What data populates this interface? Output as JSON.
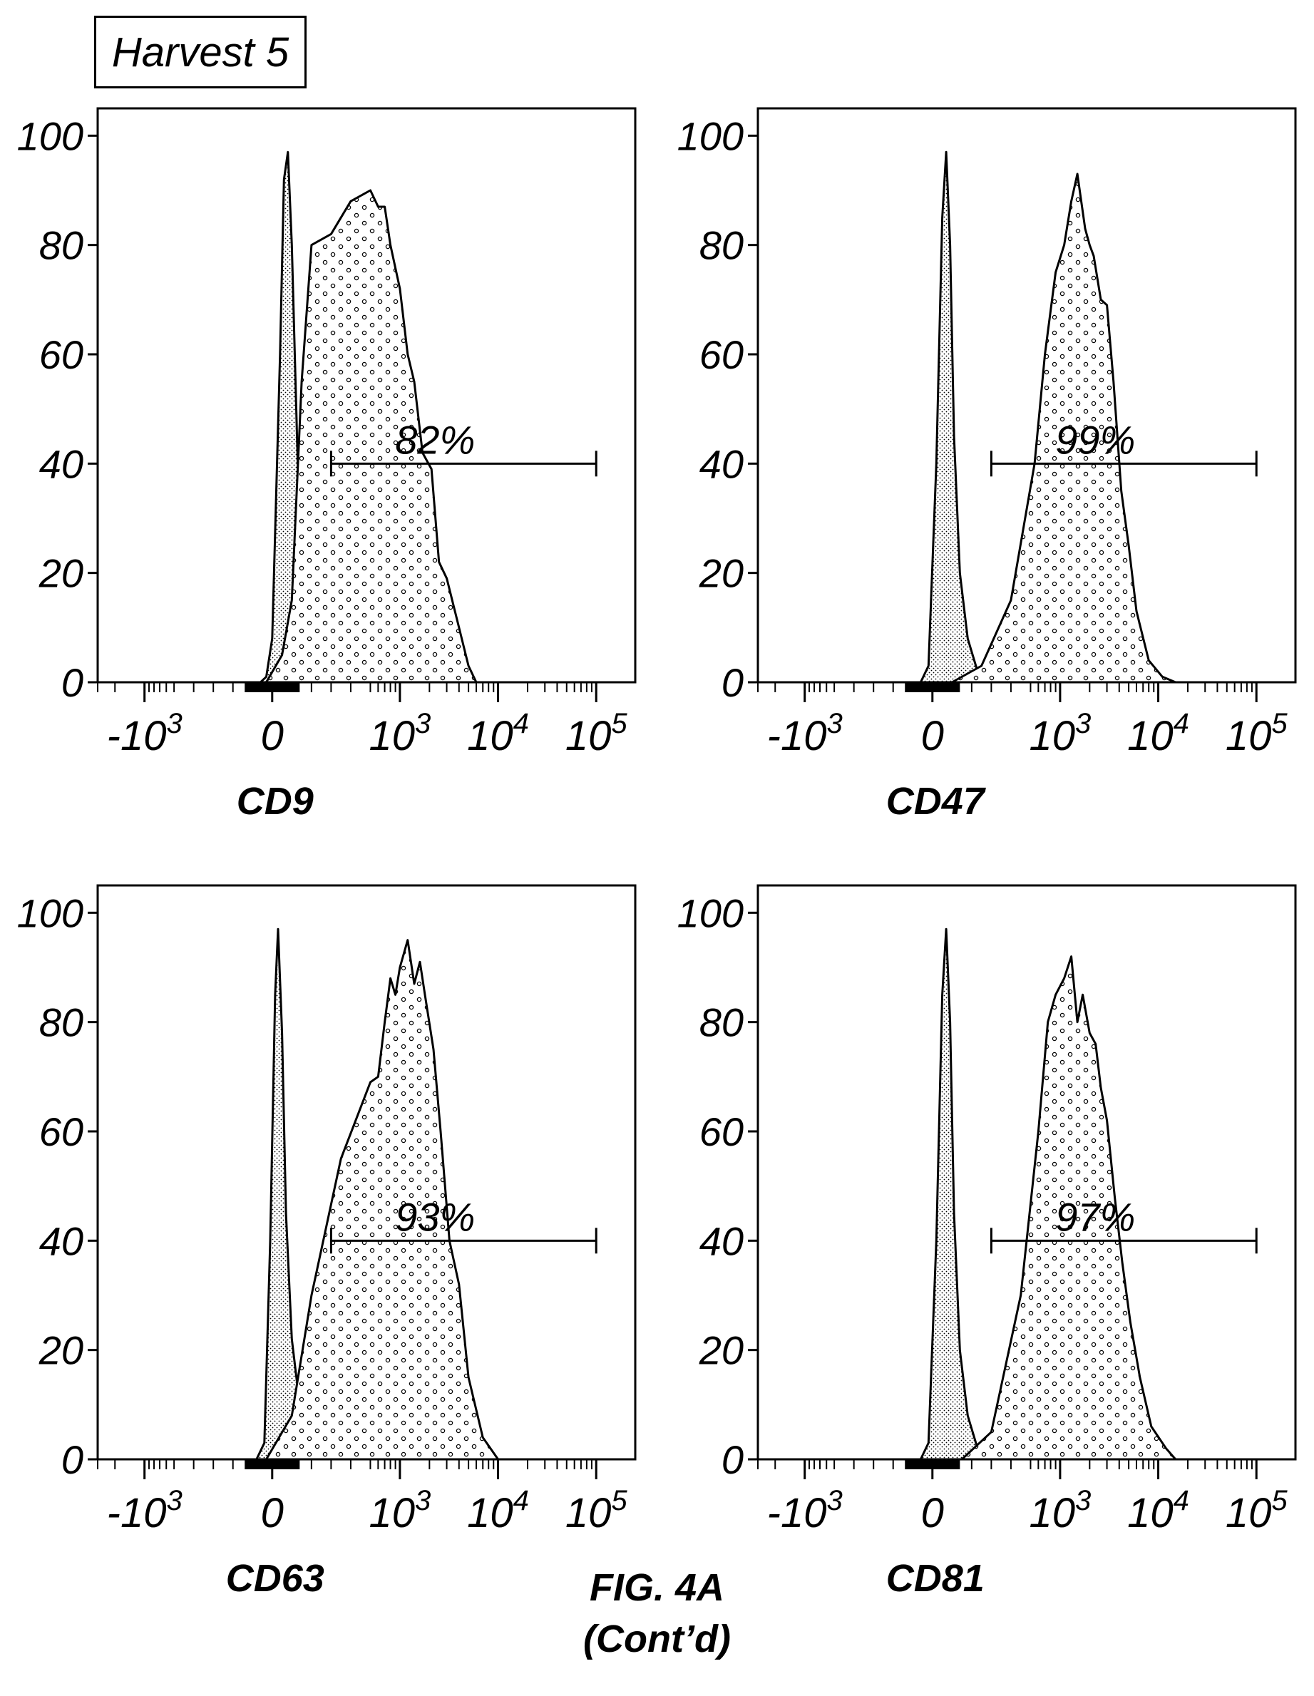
{
  "header": {
    "label": "Harvest 5"
  },
  "figure": {
    "caption": "FIG. 4A",
    "caption_cont": "(Cont’d)"
  },
  "chart_data": [
    {
      "type": "area",
      "xlabel": "CD9",
      "xscale": "biexponential",
      "yticks": [
        0,
        20,
        40,
        60,
        80,
        100
      ],
      "xticks": [
        "-10^3",
        "0",
        "10^3",
        "10^4",
        "10^5"
      ],
      "ylim": [
        0,
        105
      ],
      "gate": {
        "label": "82%",
        "x_range": [
          300,
          100000
        ],
        "y": 40
      },
      "series": [
        {
          "role": "control",
          "fill": "dense-dots",
          "x": [
            -60,
            -30,
            0,
            40,
            60,
            80,
            100,
            130,
            160,
            200,
            250,
            300,
            400
          ],
          "y": [
            0,
            1,
            8,
            60,
            92,
            97,
            80,
            40,
            22,
            12,
            6,
            2,
            0
          ]
        },
        {
          "role": "stained",
          "fill": "open-circles",
          "x": [
            -30,
            50,
            100,
            150,
            200,
            300,
            400,
            500,
            600,
            700,
            800,
            1000,
            1200,
            1400,
            1700,
            2100,
            2500,
            3000,
            4000,
            5000,
            6000
          ],
          "y": [
            0,
            5,
            15,
            55,
            80,
            82,
            88,
            90,
            87,
            87,
            80,
            72,
            60,
            55,
            42,
            39,
            22,
            19,
            10,
            3,
            0
          ]
        }
      ]
    },
    {
      "type": "area",
      "xlabel": "CD47",
      "xscale": "biexponential",
      "yticks": [
        0,
        20,
        40,
        60,
        80,
        100
      ],
      "xticks": [
        "-10^3",
        "0",
        "10^3",
        "10^4",
        "10^5"
      ],
      "ylim": [
        0,
        105
      ],
      "gate": {
        "label": "99%",
        "x_range": [
          300,
          100000
        ],
        "y": 40
      },
      "series": [
        {
          "role": "control",
          "fill": "dense-dots",
          "x": [
            -60,
            -20,
            20,
            50,
            70,
            90,
            110,
            140,
            180,
            230,
            300
          ],
          "y": [
            0,
            3,
            40,
            85,
            97,
            80,
            45,
            20,
            8,
            2,
            0
          ]
        },
        {
          "role": "stained",
          "fill": "open-circles",
          "x": [
            100,
            250,
            400,
            550,
            700,
            900,
            1100,
            1300,
            1500,
            1800,
            2000,
            2200,
            2600,
            3000,
            3500,
            4200,
            5000,
            6000,
            8000,
            11000,
            15000
          ],
          "y": [
            0,
            3,
            15,
            40,
            60,
            75,
            80,
            88,
            93,
            83,
            80,
            78,
            70,
            69,
            55,
            35,
            25,
            13,
            4,
            1,
            0
          ]
        }
      ]
    },
    {
      "type": "area",
      "xlabel": "CD63",
      "xscale": "biexponential",
      "yticks": [
        0,
        20,
        40,
        60,
        80,
        100
      ],
      "xticks": [
        "-10^3",
        "0",
        "10^3",
        "10^4",
        "10^5"
      ],
      "ylim": [
        0,
        105
      ],
      "gate": {
        "label": "93%",
        "x_range": [
          300,
          100000
        ],
        "y": 40
      },
      "series": [
        {
          "role": "control",
          "fill": "dense-dots",
          "x": [
            -80,
            -40,
            -10,
            15,
            30,
            50,
            70,
            100,
            140,
            200,
            280
          ],
          "y": [
            0,
            3,
            40,
            85,
            97,
            78,
            45,
            22,
            10,
            3,
            0
          ]
        },
        {
          "role": "stained",
          "fill": "open-circles",
          "x": [
            -30,
            100,
            200,
            350,
            500,
            600,
            700,
            800,
            900,
            1000,
            1200,
            1400,
            1600,
            1800,
            2200,
            2600,
            3200,
            4000,
            5000,
            7000,
            10000
          ],
          "y": [
            0,
            8,
            30,
            55,
            69,
            70,
            80,
            88,
            85,
            90,
            95,
            87,
            91,
            85,
            75,
            60,
            40,
            32,
            15,
            4,
            0
          ]
        }
      ]
    },
    {
      "type": "area",
      "xlabel": "CD81",
      "xscale": "biexponential",
      "yticks": [
        0,
        20,
        40,
        60,
        80,
        100
      ],
      "xticks": [
        "-10^3",
        "0",
        "10^3",
        "10^4",
        "10^5"
      ],
      "ylim": [
        0,
        105
      ],
      "gate": {
        "label": "97%",
        "x_range": [
          300,
          100000
        ],
        "y": 40
      },
      "series": [
        {
          "role": "control",
          "fill": "dense-dots",
          "x": [
            -60,
            -20,
            20,
            50,
            70,
            90,
            110,
            140,
            180,
            230,
            300
          ],
          "y": [
            0,
            3,
            40,
            85,
            97,
            80,
            45,
            20,
            8,
            2,
            0
          ]
        },
        {
          "role": "stained",
          "fill": "open-circles",
          "x": [
            150,
            300,
            450,
            600,
            750,
            900,
            1100,
            1300,
            1500,
            1700,
            2000,
            2300,
            2600,
            3000,
            3600,
            4300,
            5200,
            6500,
            8500,
            12000,
            15000
          ],
          "y": [
            0,
            5,
            30,
            60,
            80,
            85,
            88,
            92,
            80,
            85,
            78,
            76,
            68,
            62,
            48,
            36,
            25,
            15,
            6,
            2,
            0
          ]
        }
      ]
    }
  ]
}
